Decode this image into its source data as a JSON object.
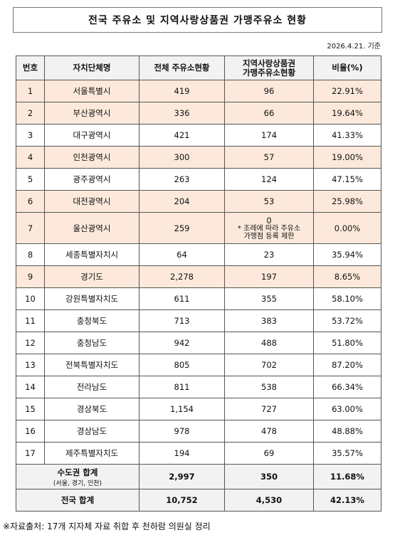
{
  "title": "전국 주유소 및 지역사랑상품권 가맹주유소 현황",
  "date": "2026.4.21. 기준",
  "table": {
    "header": [
      "번호",
      "자치단체명",
      "전체 주유소현황",
      [
        "지역사랑상품권",
        "가맹주유소현황"
      ],
      "비율(%)"
    ],
    "rows": [
      {
        "cells": [
          "1",
          "서울특별시",
          "419",
          "96",
          "22.91%"
        ],
        "highlight": true
      },
      {
        "cells": [
          "2",
          "부산광역시",
          "336",
          "66",
          "19.64%"
        ],
        "highlight": true
      },
      {
        "cells": [
          "3",
          "대구광역시",
          "421",
          "174",
          "41.33%"
        ],
        "highlight": false
      },
      {
        "cells": [
          "4",
          "인천광역시",
          "300",
          "57",
          "19.00%"
        ],
        "highlight": true
      },
      {
        "cells": [
          "5",
          "광주광역시",
          "263",
          "124",
          "47.15%"
        ],
        "highlight": false
      },
      {
        "cells": [
          "6",
          "대전광역시",
          "204",
          "53",
          "25.98%"
        ],
        "highlight": true
      },
      {
        "cells": [
          "7",
          "울산광역시",
          "259",
          [
            "0",
            "* 조례에 따라 주유소",
            "가맹점 등록 제한"
          ],
          "0.00%"
        ],
        "highlight": true
      },
      {
        "cells": [
          "8",
          "세종특별자치시",
          "64",
          "23",
          "35.94%"
        ],
        "highlight": false
      },
      {
        "cells": [
          "9",
          "경기도",
          "2,278",
          "197",
          "8.65%"
        ],
        "highlight": true
      },
      {
        "cells": [
          "10",
          "강원특별자치도",
          "611",
          "355",
          "58.10%"
        ],
        "highlight": false
      },
      {
        "cells": [
          "11",
          "충청북도",
          "713",
          "383",
          "53.72%"
        ],
        "highlight": false
      },
      {
        "cells": [
          "12",
          "충청남도",
          "942",
          "488",
          "51.80%"
        ],
        "highlight": false
      },
      {
        "cells": [
          "13",
          "전북특별자치도",
          "805",
          "702",
          "87.20%"
        ],
        "highlight": false
      },
      {
        "cells": [
          "14",
          "전라남도",
          "811",
          "538",
          "66.34%"
        ],
        "highlight": false
      },
      {
        "cells": [
          "15",
          "경상북도",
          "1,154",
          "727",
          "63.00%"
        ],
        "highlight": false
      },
      {
        "cells": [
          "16",
          "경상남도",
          "978",
          "478",
          "48.88%"
        ],
        "highlight": false
      },
      {
        "cells": [
          "17",
          "제주특별자치도",
          "194",
          "69",
          "35.57%"
        ],
        "highlight": false
      }
    ],
    "totals": [
      {
        "label": "수도권 합계",
        "sublabel": "(서울, 경기, 인천)",
        "cells": [
          "2,997",
          "350",
          "11.68%"
        ]
      },
      {
        "label": "전국 합계",
        "cells": [
          "10,752",
          "4,530",
          "42.13%"
        ]
      }
    ]
  },
  "footnote": "※자료출처: 17개 지자체 자료 취합 후 천하람 의원실 정리"
}
